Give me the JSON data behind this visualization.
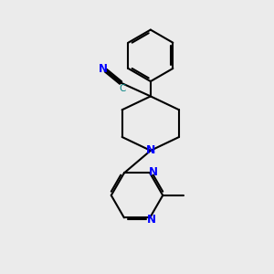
{
  "bg_color": "#ebebeb",
  "line_color": "#000000",
  "N_color": "#0000ff",
  "C_label_color": "#008080",
  "bond_width": 1.5,
  "figsize": [
    3.0,
    3.0
  ],
  "dpi": 100,
  "xlim": [
    0,
    10
  ],
  "ylim": [
    0,
    10
  ]
}
